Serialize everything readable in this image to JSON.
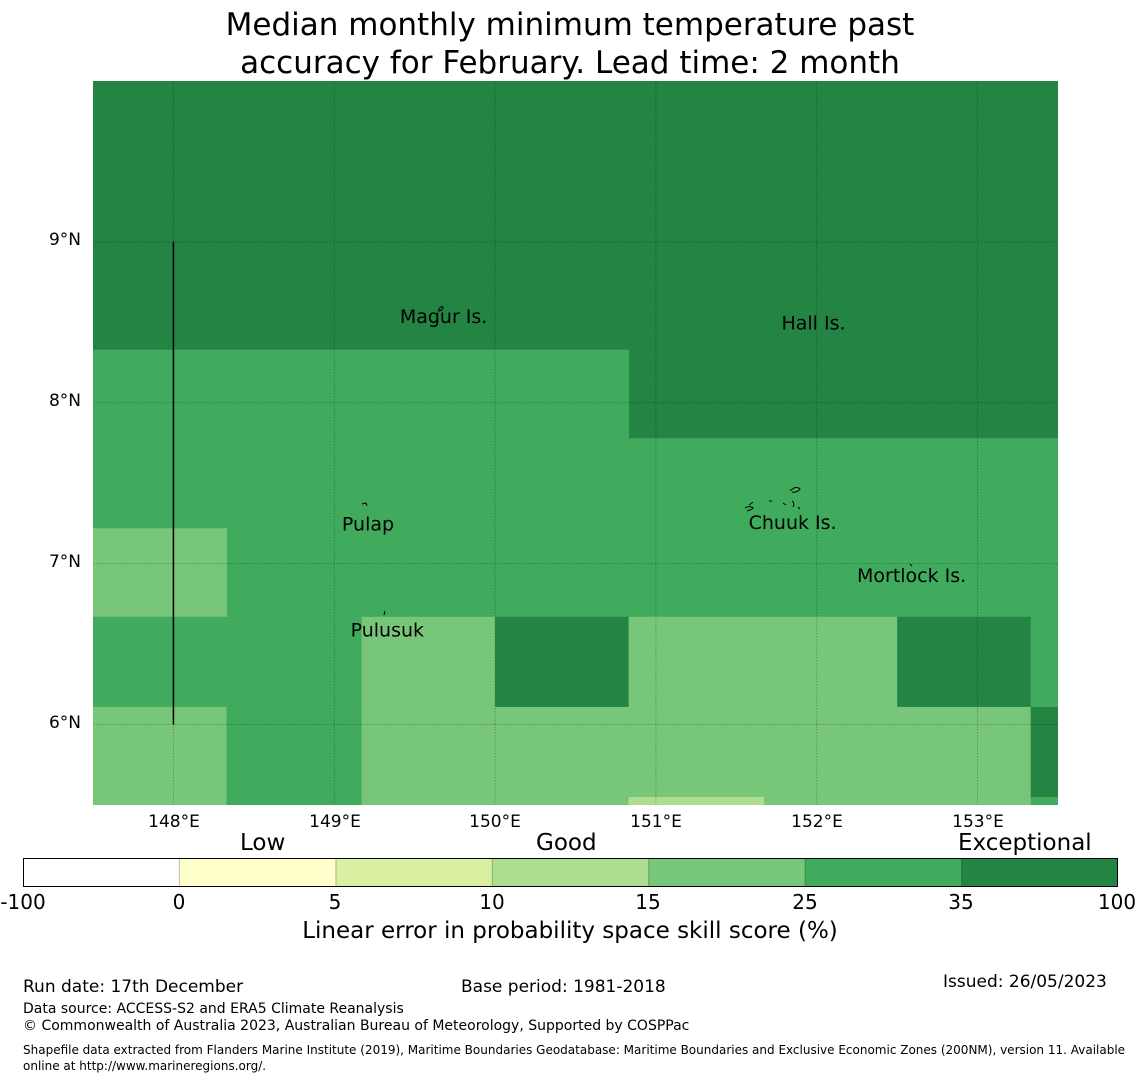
{
  "title": {
    "line1": "Median monthly minimum temperature past",
    "line2": "accuracy for February. Lead time: 2 month"
  },
  "map": {
    "lon_range": [
      147.5,
      153.5
    ],
    "lat_range": [
      5.5,
      10.0
    ],
    "x_ticks": [
      {
        "lon": 148,
        "label": "148°E"
      },
      {
        "lon": 149,
        "label": "149°E"
      },
      {
        "lon": 150,
        "label": "150°E"
      },
      {
        "lon": 151,
        "label": "151°E"
      },
      {
        "lon": 152,
        "label": "152°E"
      },
      {
        "lon": 153,
        "label": "153°E"
      }
    ],
    "y_ticks": [
      {
        "lat": 9,
        "label": "9°N"
      },
      {
        "lat": 8,
        "label": "8°N"
      },
      {
        "lat": 7,
        "label": "7°N"
      },
      {
        "lat": 6,
        "label": "6°N"
      }
    ],
    "cells": [
      {
        "lon0": 147.5,
        "lon1": 153.5,
        "lat0": 8.33,
        "lat1": 10.0,
        "color": "#238443"
      },
      {
        "lon0": 150.83,
        "lon1": 153.5,
        "lat0": 7.78,
        "lat1": 8.33,
        "color": "#238443"
      },
      {
        "lon0": 147.5,
        "lon1": 150.83,
        "lat0": 7.22,
        "lat1": 8.33,
        "color": "#41ab5d"
      },
      {
        "lon0": 150.83,
        "lon1": 153.5,
        "lat0": 6.67,
        "lat1": 7.78,
        "color": "#41ab5d"
      },
      {
        "lon0": 148.33,
        "lon1": 150.83,
        "lat0": 6.67,
        "lat1": 7.22,
        "color": "#41ab5d"
      },
      {
        "lon0": 147.5,
        "lon1": 148.33,
        "lat0": 6.67,
        "lat1": 7.22,
        "color": "#78c679"
      },
      {
        "lon0": 147.5,
        "lon1": 149.17,
        "lat0": 6.11,
        "lat1": 6.67,
        "color": "#41ab5d"
      },
      {
        "lon0": 149.17,
        "lon1": 150.0,
        "lat0": 6.11,
        "lat1": 6.67,
        "color": "#78c679"
      },
      {
        "lon0": 150.0,
        "lon1": 150.83,
        "lat0": 6.11,
        "lat1": 6.67,
        "color": "#238443"
      },
      {
        "lon0": 150.83,
        "lon1": 152.5,
        "lat0": 6.11,
        "lat1": 6.67,
        "color": "#78c679"
      },
      {
        "lon0": 152.5,
        "lon1": 153.33,
        "lat0": 6.11,
        "lat1": 6.67,
        "color": "#238443"
      },
      {
        "lon0": 153.33,
        "lon1": 153.5,
        "lat0": 6.11,
        "lat1": 6.67,
        "color": "#41ab5d"
      },
      {
        "lon0": 147.5,
        "lon1": 148.33,
        "lat0": 5.5,
        "lat1": 6.11,
        "color": "#78c679"
      },
      {
        "lon0": 148.33,
        "lon1": 149.17,
        "lat0": 5.5,
        "lat1": 6.11,
        "color": "#41ab5d"
      },
      {
        "lon0": 149.17,
        "lon1": 153.33,
        "lat0": 5.5,
        "lat1": 6.11,
        "color": "#78c679"
      },
      {
        "lon0": 153.33,
        "lon1": 153.5,
        "lat0": 5.55,
        "lat1": 6.11,
        "color": "#238443"
      },
      {
        "lon0": 153.33,
        "lon1": 153.5,
        "lat0": 5.5,
        "lat1": 5.55,
        "color": "#41ab5d"
      },
      {
        "lon0": 150.83,
        "lon1": 151.67,
        "lat0": 5.5,
        "lat1": 5.55,
        "color": "#addd8e"
      }
    ],
    "boundary_line": {
      "lon": 148.0,
      "lat0": 6.0,
      "lat1": 9.0
    },
    "places": [
      {
        "name": "Magur Is.",
        "lon": 149.68,
        "lat": 8.53
      },
      {
        "name": "Hall Is.",
        "lon": 151.98,
        "lat": 8.49
      },
      {
        "name": "Pulap",
        "lon": 149.21,
        "lat": 7.24
      },
      {
        "name": "Chuuk Is.",
        "lon": 151.85,
        "lat": 7.25
      },
      {
        "name": "Mortlock Is.",
        "lon": 152.59,
        "lat": 6.92
      },
      {
        "name": "Pulusuk",
        "lon": 149.33,
        "lat": 6.58
      }
    ]
  },
  "colorbar": {
    "categories": [
      {
        "label": "Low",
        "center_index": 1
      },
      {
        "label": "Good",
        "center_index": 3
      },
      {
        "label": "Exceptional",
        "center_index": 6
      }
    ],
    "bins": [
      "#ffffff",
      "#ffffcc",
      "#d9f0a3",
      "#addd8e",
      "#78c679",
      "#41ab5d",
      "#238443"
    ],
    "ticks": [
      "-100",
      "0",
      "5",
      "10",
      "15",
      "25",
      "35",
      "100"
    ],
    "title": "Linear error in probability space skill score (%)"
  },
  "footer": {
    "run_date": "Run date: 17th December",
    "base_period": "Base period: 1981-2018",
    "issued": "Issued: 26/05/2023",
    "data_source": "Data source: ACCESS-S2 and ERA5 Climate Reanalysis",
    "copyright": "© Commonwealth of Australia 2023, Australian Bureau of Meteorology, Supported by COSPPac",
    "shapefile_line1": "Shapefile data extracted from Flanders Marine Institute (2019), Maritime Boundaries Geodatabase: Maritime Boundaries and Exclusive Economic Zones (200NM), version 11. Available",
    "shapefile_line2": "online at http://www.marineregions.org/."
  }
}
